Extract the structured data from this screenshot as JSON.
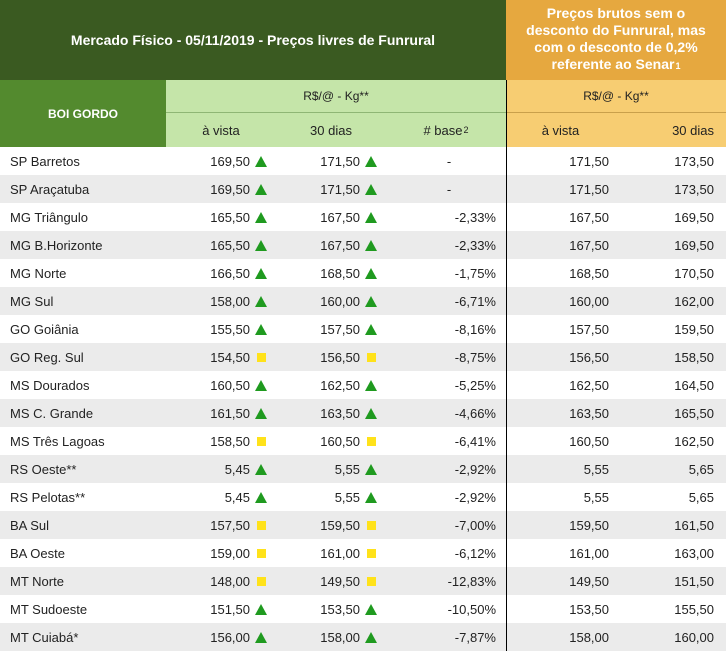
{
  "header": {
    "title": "Mercado Físico - 05/11/2019 - Preços livres de Funrural",
    "side_title_line1": "Preços brutos sem o",
    "side_title_line2": "desconto do Funrural, mas",
    "side_title_line3": "com o desconto de 0,2%",
    "side_title_line4_text": "referente ao Senar",
    "side_title_line4_note": "1",
    "category": "BOI GORDO",
    "unit_green": "R$/@ - Kg**",
    "unit_orange": "R$/@ - Kg**",
    "col_avista": "à vista",
    "col_30dias": "30 dias",
    "col_base_text": "# base",
    "col_base_note": "2",
    "col_avista_o": "à vista",
    "col_30dias_o": "30 dias"
  },
  "colors": {
    "title_bg": "#3a5a21",
    "side_title_bg": "#e6a83f",
    "boi_bg": "#538a2e",
    "green_header_bg": "#c5e5a9",
    "orange_header_bg": "#f7cd72",
    "trend_up": "#1f9a1f",
    "trend_stable": "#ffe21a"
  },
  "rows": [
    {
      "region": "SP Barretos",
      "avista": "169,50",
      "avista_trend": "up",
      "d30": "171,50",
      "d30_trend": "up",
      "base": "-",
      "bruto_avista": "171,50",
      "bruto_30": "173,50"
    },
    {
      "region": "SP Araçatuba",
      "avista": "169,50",
      "avista_trend": "up",
      "d30": "171,50",
      "d30_trend": "up",
      "base": "-",
      "bruto_avista": "171,50",
      "bruto_30": "173,50"
    },
    {
      "region": "MG Triângulo",
      "avista": "165,50",
      "avista_trend": "up",
      "d30": "167,50",
      "d30_trend": "up",
      "base": "-2,33%",
      "bruto_avista": "167,50",
      "bruto_30": "169,50"
    },
    {
      "region": "MG B.Horizonte",
      "avista": "165,50",
      "avista_trend": "up",
      "d30": "167,50",
      "d30_trend": "up",
      "base": "-2,33%",
      "bruto_avista": "167,50",
      "bruto_30": "169,50"
    },
    {
      "region": "MG Norte",
      "avista": "166,50",
      "avista_trend": "up",
      "d30": "168,50",
      "d30_trend": "up",
      "base": "-1,75%",
      "bruto_avista": "168,50",
      "bruto_30": "170,50"
    },
    {
      "region": "MG Sul",
      "avista": "158,00",
      "avista_trend": "up",
      "d30": "160,00",
      "d30_trend": "up",
      "base": "-6,71%",
      "bruto_avista": "160,00",
      "bruto_30": "162,00"
    },
    {
      "region": "GO Goiânia",
      "avista": "155,50",
      "avista_trend": "up",
      "d30": "157,50",
      "d30_trend": "up",
      "base": "-8,16%",
      "bruto_avista": "157,50",
      "bruto_30": "159,50"
    },
    {
      "region": "GO Reg. Sul",
      "avista": "154,50",
      "avista_trend": "stable",
      "d30": "156,50",
      "d30_trend": "stable",
      "base": "-8,75%",
      "bruto_avista": "156,50",
      "bruto_30": "158,50"
    },
    {
      "region": "MS Dourados",
      "avista": "160,50",
      "avista_trend": "up",
      "d30": "162,50",
      "d30_trend": "up",
      "base": "-5,25%",
      "bruto_avista": "162,50",
      "bruto_30": "164,50"
    },
    {
      "region": "MS C. Grande",
      "avista": "161,50",
      "avista_trend": "up",
      "d30": "163,50",
      "d30_trend": "up",
      "base": "-4,66%",
      "bruto_avista": "163,50",
      "bruto_30": "165,50"
    },
    {
      "region": "MS Três Lagoas",
      "avista": "158,50",
      "avista_trend": "stable",
      "d30": "160,50",
      "d30_trend": "stable",
      "base": "-6,41%",
      "bruto_avista": "160,50",
      "bruto_30": "162,50"
    },
    {
      "region": "RS Oeste**",
      "avista": "5,45",
      "avista_trend": "up",
      "d30": "5,55",
      "d30_trend": "up",
      "base": "-2,92%",
      "bruto_avista": "5,55",
      "bruto_30": "5,65"
    },
    {
      "region": "RS Pelotas**",
      "avista": "5,45",
      "avista_trend": "up",
      "d30": "5,55",
      "d30_trend": "up",
      "base": "-2,92%",
      "bruto_avista": "5,55",
      "bruto_30": "5,65"
    },
    {
      "region": "BA Sul",
      "avista": "157,50",
      "avista_trend": "stable",
      "d30": "159,50",
      "d30_trend": "stable",
      "base": "-7,00%",
      "bruto_avista": "159,50",
      "bruto_30": "161,50"
    },
    {
      "region": "BA Oeste",
      "avista": "159,00",
      "avista_trend": "stable",
      "d30": "161,00",
      "d30_trend": "stable",
      "base": "-6,12%",
      "bruto_avista": "161,00",
      "bruto_30": "163,00"
    },
    {
      "region": "MT Norte",
      "avista": "148,00",
      "avista_trend": "stable",
      "d30": "149,50",
      "d30_trend": "stable",
      "base": "-12,83%",
      "bruto_avista": "149,50",
      "bruto_30": "151,50"
    },
    {
      "region": "MT Sudoeste",
      "avista": "151,50",
      "avista_trend": "up",
      "d30": "153,50",
      "d30_trend": "up",
      "base": "-10,50%",
      "bruto_avista": "153,50",
      "bruto_30": "155,50"
    },
    {
      "region": "MT Cuiabá*",
      "avista": "156,00",
      "avista_trend": "up",
      "d30": "158,00",
      "d30_trend": "up",
      "base": "-7,87%",
      "bruto_avista": "158,00",
      "bruto_30": "160,00"
    }
  ]
}
